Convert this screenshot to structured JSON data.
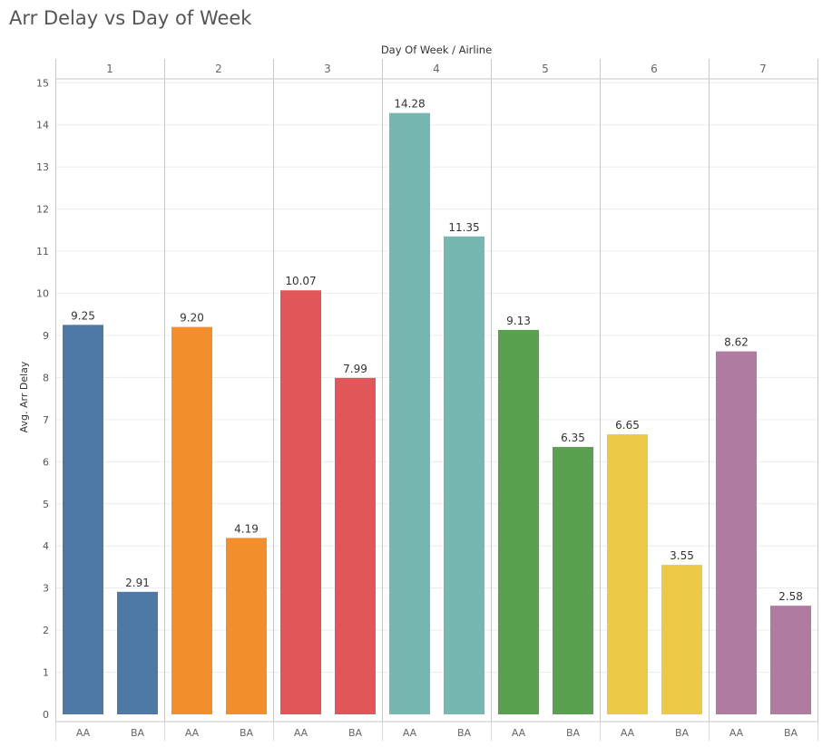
{
  "chart_data": {
    "type": "bar",
    "title": "Arr Delay vs Day of Week",
    "column_header": "Day Of Week / Airline",
    "ylabel": "Avg. Arr Delay",
    "ylim": [
      0,
      15.5
    ],
    "yticks": [
      0,
      1,
      2,
      3,
      4,
      5,
      6,
      7,
      8,
      9,
      10,
      11,
      12,
      13,
      14,
      15
    ],
    "grid": true,
    "groups": [
      {
        "day": "1",
        "color": "#4e79a7",
        "bars": [
          {
            "airline": "AA",
            "value": 9.25,
            "label": "9.25"
          },
          {
            "airline": "BA",
            "value": 2.91,
            "label": "2.91"
          }
        ]
      },
      {
        "day": "2",
        "color": "#f28e2b",
        "bars": [
          {
            "airline": "AA",
            "value": 9.2,
            "label": "9.20"
          },
          {
            "airline": "BA",
            "value": 4.19,
            "label": "4.19"
          }
        ]
      },
      {
        "day": "3",
        "color": "#e15759",
        "bars": [
          {
            "airline": "AA",
            "value": 10.07,
            "label": "10.07"
          },
          {
            "airline": "BA",
            "value": 7.99,
            "label": "7.99"
          }
        ]
      },
      {
        "day": "4",
        "color": "#76b7b2",
        "bars": [
          {
            "airline": "AA",
            "value": 14.28,
            "label": "14.28"
          },
          {
            "airline": "BA",
            "value": 11.35,
            "label": "11.35"
          }
        ]
      },
      {
        "day": "5",
        "color": "#59a14f",
        "bars": [
          {
            "airline": "AA",
            "value": 9.13,
            "label": "9.13"
          },
          {
            "airline": "BA",
            "value": 6.35,
            "label": "6.35"
          }
        ]
      },
      {
        "day": "6",
        "color": "#edc948",
        "bars": [
          {
            "airline": "AA",
            "value": 6.65,
            "label": "6.65"
          },
          {
            "airline": "BA",
            "value": 3.55,
            "label": "3.55"
          }
        ]
      },
      {
        "day": "7",
        "color": "#b07aa1",
        "bars": [
          {
            "airline": "AA",
            "value": 8.62,
            "label": "8.62"
          },
          {
            "airline": "BA",
            "value": 2.58,
            "label": "2.58"
          }
        ]
      }
    ]
  }
}
